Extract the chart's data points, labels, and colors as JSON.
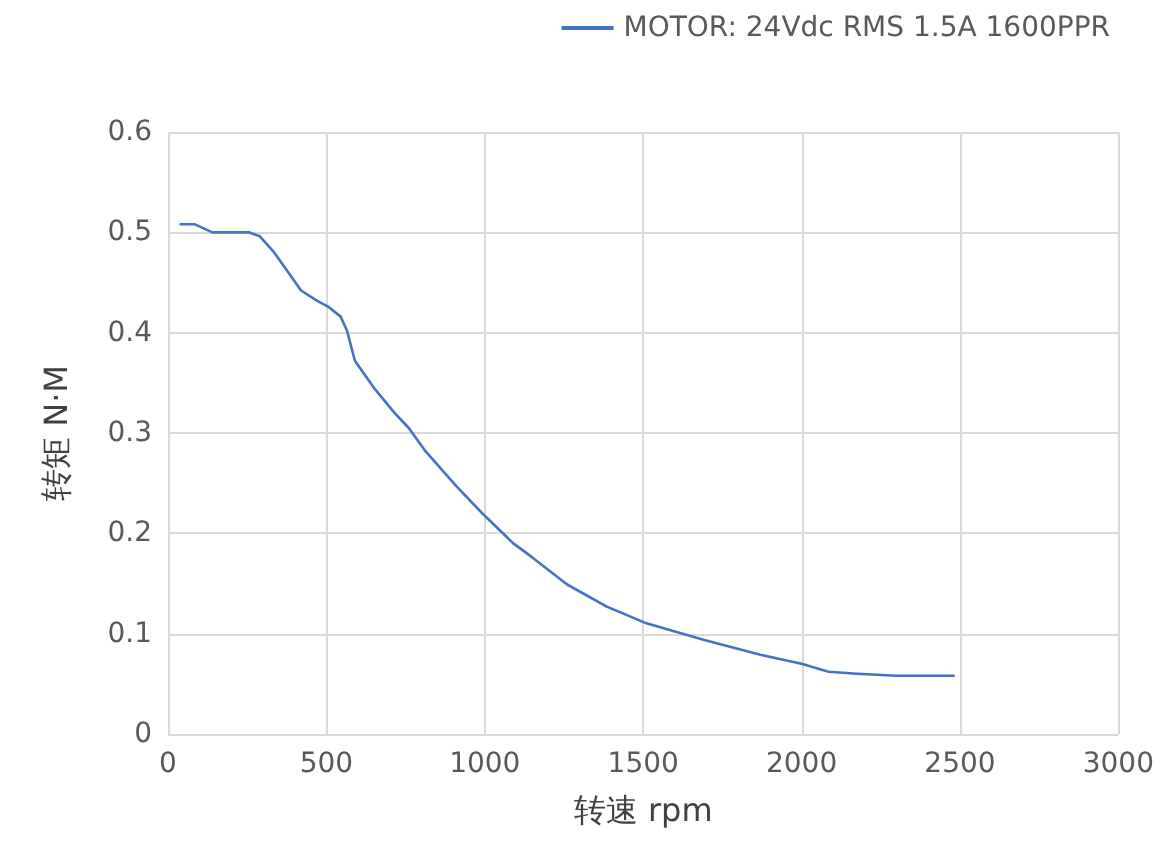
{
  "chart_data": {
    "type": "line",
    "xlabel": "转速 rpm",
    "ylabel": "转矩 N·M",
    "xlim": [
      0,
      3000
    ],
    "xticks": [
      0,
      500,
      1000,
      1500,
      2000,
      2500,
      3000
    ],
    "ylim": [
      0,
      0.6
    ],
    "yticks": [
      0,
      0.1,
      0.2,
      0.3,
      0.4,
      0.5,
      0.6
    ],
    "grid": true,
    "legend": "top right",
    "marker": "none",
    "line_style": "solid",
    "series": [
      {
        "name": "MOTOR: 24Vdc RMS 1.5A 1600PPR",
        "color": "#4472c4",
        "x": [
          40,
          85,
          140,
          255,
          290,
          335,
          380,
          420,
          470,
          505,
          545,
          565,
          590,
          650,
          715,
          760,
          810,
          910,
          995,
          1090,
          1150,
          1260,
          1385,
          1505,
          1690,
          1870,
          2000,
          2085,
          2175,
          2300,
          2480
        ],
        "values": [
          0.508,
          0.508,
          0.5,
          0.5,
          0.496,
          0.48,
          0.46,
          0.442,
          0.432,
          0.426,
          0.416,
          0.402,
          0.372,
          0.345,
          0.32,
          0.305,
          0.283,
          0.247,
          0.219,
          0.19,
          0.176,
          0.149,
          0.127,
          0.111,
          0.094,
          0.079,
          0.07,
          0.062,
          0.06,
          0.058,
          0.058
        ]
      }
    ]
  }
}
